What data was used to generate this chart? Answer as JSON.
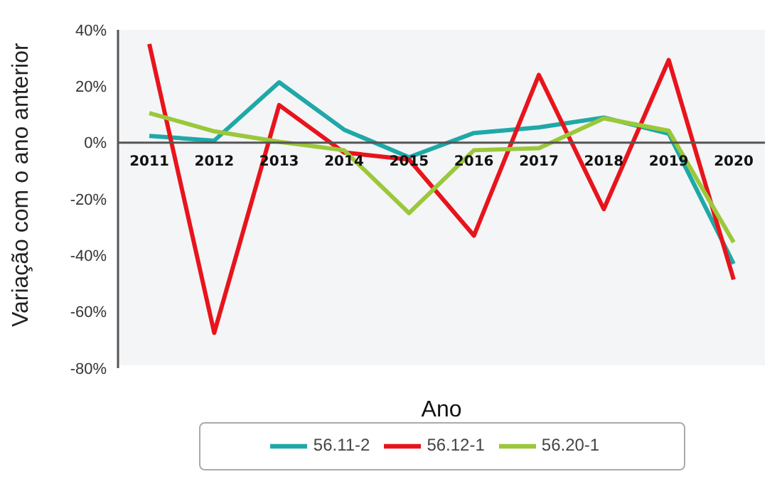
{
  "chart_data": {
    "type": "line",
    "xlabel": "Ano",
    "ylabel": "Variação com o ano anterior",
    "categories": [
      "2011",
      "2012",
      "2013",
      "2014",
      "2015",
      "2016",
      "2017",
      "2018",
      "2019",
      "2020"
    ],
    "series": [
      {
        "name": "56.11-2",
        "color": "#1fa8a8",
        "values": [
          2.4,
          0.7,
          21.4,
          4.6,
          -5.2,
          3.4,
          5.4,
          8.9,
          3.2,
          -43
        ]
      },
      {
        "name": "56.12-1",
        "color": "#e8141c",
        "values": [
          35,
          -67.5,
          13.3,
          -3.5,
          -6,
          -33,
          24,
          -23.6,
          29.3,
          -48.6
        ]
      },
      {
        "name": "56.20-1",
        "color": "#9bc83a",
        "values": [
          10.5,
          4,
          0.3,
          -2.7,
          -25,
          -2.7,
          -2,
          8.6,
          4.2,
          -35.4
        ]
      }
    ],
    "ylim": [
      -80,
      40
    ],
    "yticks": [
      {
        "value": -80,
        "label": "-80%"
      },
      {
        "value": -60,
        "label": "-60%"
      },
      {
        "value": -40,
        "label": "-40%"
      },
      {
        "value": -20,
        "label": "-20%"
      },
      {
        "value": 0,
        "label": "0%"
      },
      {
        "value": 20,
        "label": "20%"
      },
      {
        "value": 40,
        "label": "40%"
      }
    ],
    "grid": false,
    "legend": "bottom",
    "marker": "none",
    "line_style": "solid"
  }
}
